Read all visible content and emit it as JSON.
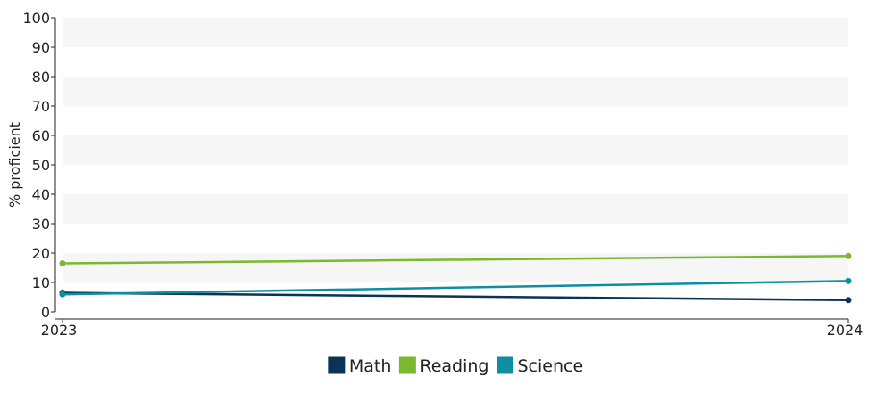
{
  "chart_data": {
    "type": "line",
    "ylabel": "% proficient",
    "x": [
      "2023",
      "2024"
    ],
    "ylim": [
      0,
      100
    ],
    "yticks": [
      0,
      10,
      20,
      30,
      40,
      50,
      60,
      70,
      80,
      90,
      100
    ],
    "grid": "alternating horizontal bands",
    "legend_position": "bottom-center",
    "series": [
      {
        "name": "Math",
        "color": "#0b3356",
        "values": [
          6.5,
          4.0
        ]
      },
      {
        "name": "Reading",
        "color": "#7ab92e",
        "values": [
          16.5,
          19.0
        ]
      },
      {
        "name": "Science",
        "color": "#0f8da3",
        "values": [
          6.0,
          10.5
        ]
      }
    ]
  }
}
